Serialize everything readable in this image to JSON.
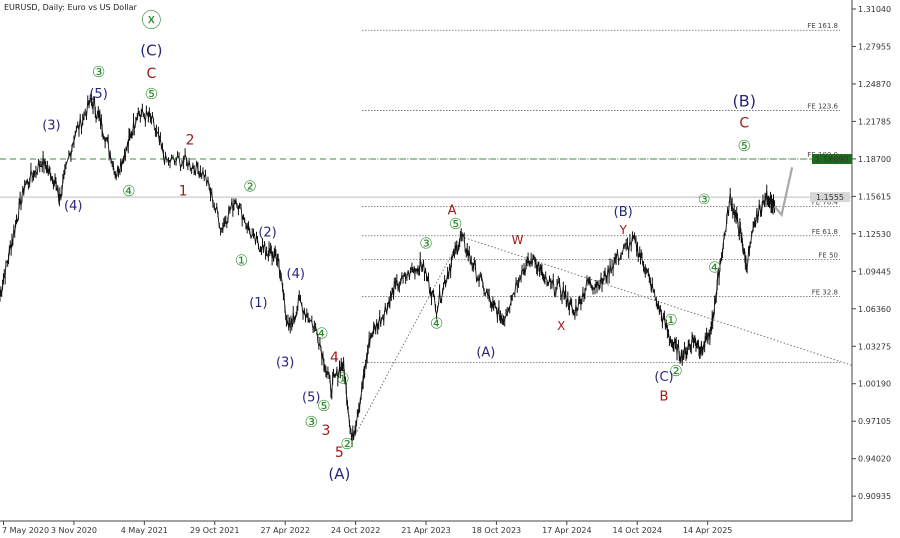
{
  "chart_data": {
    "type": "line",
    "title": "EURUSD, Daily:  Euro vs US Dollar",
    "y_ticks": [
      "1.31040",
      "1.27955",
      "1.24870",
      "1.21785",
      "1.18700",
      "1.15615",
      "1.12530",
      "1.09445",
      "1.06360",
      "1.03275",
      "1.00190",
      "0.97105",
      "0.94020",
      "0.90935"
    ],
    "ylim": [
      0.8889,
      1.3178
    ],
    "x_ticks": [
      "7 May 2020",
      "3 Nov 2020",
      "4 May 2021",
      "29 Oct 2021",
      "27 Apr 2022",
      "24 Oct 2022",
      "21 Apr 2023",
      "18 Oct 2023",
      "17 Apr 2024",
      "14 Oct 2024",
      "14 Apr 2025"
    ],
    "x_tick_index": [
      0,
      1,
      2,
      3,
      4,
      5,
      6,
      7,
      8,
      9,
      10
    ],
    "xlim": [
      -0.05,
      12.05
    ],
    "current_price_label": "1.1555",
    "current_price": 1.1555,
    "highlight_level": {
      "label": "1.18690",
      "value": 1.1869
    },
    "fib_levels": [
      {
        "label": "FE 161.8",
        "value": 1.2929
      },
      {
        "label": "FE 123.6",
        "value": 1.2268
      },
      {
        "label": "FE 100.0",
        "value": 1.1869
      },
      {
        "label": "FE 76.4",
        "value": 1.1478
      },
      {
        "label": "FE 61.8",
        "value": 1.1237
      },
      {
        "label": "FE 50",
        "value": 1.1043
      },
      {
        "label": "FE 32.8",
        "value": 1.0737
      },
      {
        "label": "",
        "value": 1.0195
      }
    ],
    "price_path": [
      [
        -0.05,
        1.075
      ],
      [
        0.12,
        1.12
      ],
      [
        0.3,
        1.165
      ],
      [
        0.55,
        1.185
      ],
      [
        0.72,
        1.17
      ],
      [
        0.8,
        1.155
      ],
      [
        1.0,
        1.205
      ],
      [
        1.25,
        1.235
      ],
      [
        1.4,
        1.215
      ],
      [
        1.6,
        1.175
      ],
      [
        1.75,
        1.195
      ],
      [
        1.9,
        1.225
      ],
      [
        2.1,
        1.22
      ],
      [
        2.3,
        1.185
      ],
      [
        2.6,
        1.185
      ],
      [
        2.85,
        1.175
      ],
      [
        3.1,
        1.13
      ],
      [
        3.3,
        1.155
      ],
      [
        3.55,
        1.12
      ],
      [
        3.75,
        1.11
      ],
      [
        3.9,
        1.105
      ],
      [
        4.05,
        1.045
      ],
      [
        4.2,
        1.07
      ],
      [
        4.45,
        1.045
      ],
      [
        4.65,
        0.999
      ],
      [
        4.82,
        1.02
      ],
      [
        4.95,
        0.955
      ],
      [
        5.1,
        1.0
      ],
      [
        5.2,
        1.04
      ],
      [
        5.4,
        1.06
      ],
      [
        5.55,
        1.08
      ],
      [
        5.8,
        1.095
      ],
      [
        5.95,
        1.1
      ],
      [
        6.15,
        1.065
      ],
      [
        6.35,
        1.1
      ],
      [
        6.5,
        1.123
      ],
      [
        6.7,
        1.095
      ],
      [
        6.95,
        1.065
      ],
      [
        7.1,
        1.055
      ],
      [
        7.35,
        1.095
      ],
      [
        7.55,
        1.105
      ],
      [
        7.7,
        1.085
      ],
      [
        7.95,
        1.078
      ],
      [
        8.1,
        1.06
      ],
      [
        8.3,
        1.085
      ],
      [
        8.5,
        1.085
      ],
      [
        8.7,
        1.105
      ],
      [
        8.95,
        1.12
      ],
      [
        9.1,
        1.1
      ],
      [
        9.3,
        1.065
      ],
      [
        9.5,
        1.035
      ],
      [
        9.65,
        1.025
      ],
      [
        9.8,
        1.04
      ],
      [
        9.92,
        1.03
      ],
      [
        10.05,
        1.045
      ],
      [
        10.15,
        1.09
      ],
      [
        10.32,
        1.1545
      ],
      [
        10.45,
        1.13
      ],
      [
        10.55,
        1.1
      ],
      [
        10.7,
        1.14
      ],
      [
        10.85,
        1.157
      ],
      [
        10.95,
        1.148
      ]
    ],
    "projection": [
      [
        10.95,
        1.148
      ],
      [
        11.05,
        1.141
      ],
      [
        11.2,
        1.18
      ]
    ],
    "trend_lines": [
      {
        "from": [
          4.95,
          0.955
        ],
        "to": [
          6.5,
          1.123
        ]
      },
      {
        "from": [
          6.5,
          1.123
        ],
        "to": [
          12.05,
          1.017
        ]
      }
    ],
    "wave_labels": [
      {
        "text": "ⓧ",
        "x": 2.1,
        "y": 1.3,
        "color": "#2e8b2e",
        "size": 20
      },
      {
        "text": "(C)",
        "x": 2.1,
        "y": 1.276,
        "color": "#27277a",
        "size": 15
      },
      {
        "text": "C",
        "x": 2.1,
        "y": 1.257,
        "color": "#a01a1a",
        "size": 14
      },
      {
        "text": "⑤",
        "x": 2.1,
        "y": 1.24,
        "color": "#2e8b2e",
        "size": 15
      },
      {
        "text": "③",
        "x": 1.35,
        "y": 1.258,
        "color": "#2e8b2e",
        "size": 15
      },
      {
        "text": "(5)",
        "x": 1.35,
        "y": 1.24,
        "color": "#27277a",
        "size": 13
      },
      {
        "text": "(3)",
        "x": 0.68,
        "y": 1.214,
        "color": "#27277a",
        "size": 13
      },
      {
        "text": "(4)",
        "x": 0.99,
        "y": 1.148,
        "color": "#27277a",
        "size": 13
      },
      {
        "text": "④",
        "x": 1.78,
        "y": 1.16,
        "color": "#2e8b2e",
        "size": 15
      },
      {
        "text": "2",
        "x": 2.65,
        "y": 1.202,
        "color": "#a01a1a",
        "size": 14
      },
      {
        "text": "1",
        "x": 2.55,
        "y": 1.16,
        "color": "#a01a1a",
        "size": 14
      },
      {
        "text": "②",
        "x": 3.5,
        "y": 1.164,
        "color": "#2e8b2e",
        "size": 15
      },
      {
        "text": "(2)",
        "x": 3.75,
        "y": 1.126,
        "color": "#27277a",
        "size": 13
      },
      {
        "text": "①",
        "x": 3.38,
        "y": 1.103,
        "color": "#2e8b2e",
        "size": 15
      },
      {
        "text": "(4)",
        "x": 4.15,
        "y": 1.092,
        "color": "#27277a",
        "size": 13
      },
      {
        "text": "(1)",
        "x": 3.62,
        "y": 1.068,
        "color": "#27277a",
        "size": 13
      },
      {
        "text": "④",
        "x": 4.52,
        "y": 1.043,
        "color": "#2e8b2e",
        "size": 15
      },
      {
        "text": "4",
        "x": 4.7,
        "y": 1.023,
        "color": "#a01a1a",
        "size": 14
      },
      {
        "text": "(3)",
        "x": 4.0,
        "y": 1.019,
        "color": "#27277a",
        "size": 13
      },
      {
        "text": "①",
        "x": 4.82,
        "y": 1.006,
        "color": "#2e8b2e",
        "size": 15
      },
      {
        "text": "(5)",
        "x": 4.37,
        "y": 0.99,
        "color": "#27277a",
        "size": 13
      },
      {
        "text": "⑤",
        "x": 4.55,
        "y": 0.983,
        "color": "#2e8b2e",
        "size": 15
      },
      {
        "text": "③",
        "x": 4.37,
        "y": 0.97,
        "color": "#2e8b2e",
        "size": 15
      },
      {
        "text": "3",
        "x": 4.58,
        "y": 0.963,
        "color": "#a01a1a",
        "size": 14
      },
      {
        "text": "②",
        "x": 4.88,
        "y": 0.952,
        "color": "#2e8b2e",
        "size": 15
      },
      {
        "text": "5",
        "x": 4.77,
        "y": 0.945,
        "color": "#a01a1a",
        "size": 14
      },
      {
        "text": "(A)",
        "x": 4.77,
        "y": 0.927,
        "color": "#27277a",
        "size": 15
      },
      {
        "text": "A",
        "x": 6.37,
        "y": 1.144,
        "color": "#a01a1a",
        "size": 13
      },
      {
        "text": "⑤",
        "x": 6.42,
        "y": 1.133,
        "color": "#2e8b2e",
        "size": 15
      },
      {
        "text": "③",
        "x": 6.0,
        "y": 1.117,
        "color": "#2e8b2e",
        "size": 15
      },
      {
        "text": "④",
        "x": 6.15,
        "y": 1.051,
        "color": "#2e8b2e",
        "size": 15
      },
      {
        "text": "(A)",
        "x": 6.85,
        "y": 1.027,
        "color": "#27277a",
        "size": 13
      },
      {
        "text": "W",
        "x": 7.3,
        "y": 1.12,
        "color": "#a01a1a",
        "size": 12
      },
      {
        "text": "X",
        "x": 7.92,
        "y": 1.049,
        "color": "#a01a1a",
        "size": 12
      },
      {
        "text": "(B)",
        "x": 8.8,
        "y": 1.143,
        "color": "#27277a",
        "size": 13
      },
      {
        "text": "Y",
        "x": 8.8,
        "y": 1.128,
        "color": "#a01a1a",
        "size": 12
      },
      {
        "text": "①",
        "x": 9.48,
        "y": 1.054,
        "color": "#2e8b2e",
        "size": 15
      },
      {
        "text": "②",
        "x": 9.55,
        "y": 1.012,
        "color": "#2e8b2e",
        "size": 15
      },
      {
        "text": "(C)",
        "x": 9.38,
        "y": 1.007,
        "color": "#27277a",
        "size": 13
      },
      {
        "text": "B",
        "x": 9.38,
        "y": 0.991,
        "color": "#a01a1a",
        "size": 13
      },
      {
        "text": "④",
        "x": 10.1,
        "y": 1.097,
        "color": "#2e8b2e",
        "size": 15
      },
      {
        "text": "③",
        "x": 9.95,
        "y": 1.153,
        "color": "#2e8b2e",
        "size": 14
      },
      {
        "text": "(B)",
        "x": 10.52,
        "y": 1.234,
        "color": "#27277a",
        "size": 16
      },
      {
        "text": "C",
        "x": 10.52,
        "y": 1.216,
        "color": "#a01a1a",
        "size": 14
      },
      {
        "text": "⑤",
        "x": 10.52,
        "y": 1.197,
        "color": "#2e8b2e",
        "size": 15
      }
    ]
  }
}
